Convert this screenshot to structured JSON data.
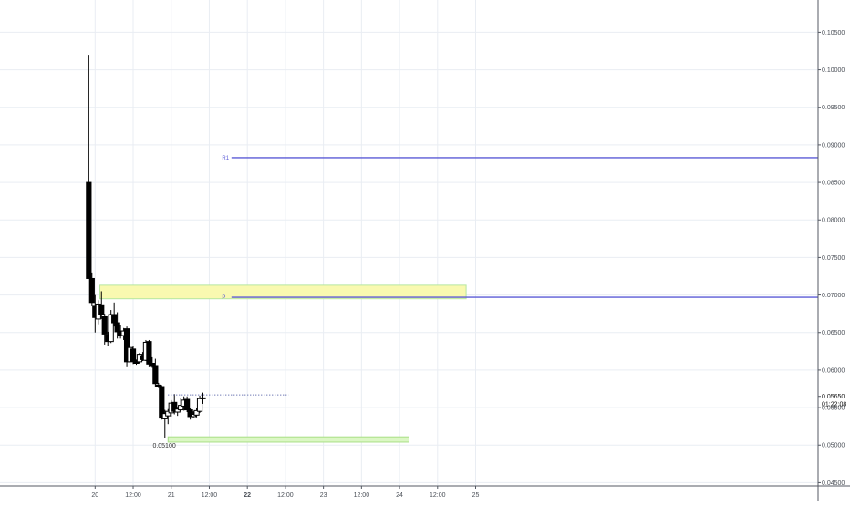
{
  "chart_data": {
    "type": "candlestick",
    "title": "",
    "xlabel": "",
    "ylabel": "",
    "y_axis_position": "right",
    "grid": true,
    "ylim": [
      0.0425,
      0.1093
    ],
    "xlim_hours": [
      -30,
      228
    ],
    "y_ticks": [
      "0.10500",
      "0.10000",
      "0.09500",
      "0.09000",
      "0.08500",
      "0.08000",
      "0.07500",
      "0.07000",
      "0.06500",
      "0.06000",
      "0.05500",
      "0.05000",
      "0.04500"
    ],
    "x_ticks": [
      {
        "label": "20",
        "hour": 0,
        "bold": false
      },
      {
        "label": "12:00",
        "hour": 12,
        "bold": false
      },
      {
        "label": "21",
        "hour": 24,
        "bold": false
      },
      {
        "label": "12:00",
        "hour": 36,
        "bold": false
      },
      {
        "label": "22",
        "hour": 48,
        "bold": true
      },
      {
        "label": "12:00",
        "hour": 60,
        "bold": false
      },
      {
        "label": "23",
        "hour": 72,
        "bold": false
      },
      {
        "label": "12:00",
        "hour": 84,
        "bold": false
      },
      {
        "label": "24",
        "hour": 96,
        "bold": false
      },
      {
        "label": "12:00",
        "hour": 108,
        "bold": false
      },
      {
        "label": "25",
        "hour": 120,
        "bold": false
      }
    ],
    "candles": [
      {
        "t": -2,
        "o": 0.085,
        "h": 0.102,
        "l": 0.0722,
        "c": 0.0722
      },
      {
        "t": -1,
        "o": 0.0722,
        "h": 0.073,
        "l": 0.0685,
        "c": 0.069
      },
      {
        "t": 0,
        "o": 0.0685,
        "h": 0.07,
        "l": 0.065,
        "c": 0.067
      },
      {
        "t": 1,
        "o": 0.0668,
        "h": 0.0693,
        "l": 0.0661,
        "c": 0.0688
      },
      {
        "t": 2,
        "o": 0.0687,
        "h": 0.0705,
        "l": 0.0668,
        "c": 0.0674
      },
      {
        "t": 3,
        "o": 0.0671,
        "h": 0.0675,
        "l": 0.0634,
        "c": 0.0648
      },
      {
        "t": 4,
        "o": 0.0647,
        "h": 0.0651,
        "l": 0.0632,
        "c": 0.0638
      },
      {
        "t": 5,
        "o": 0.0638,
        "h": 0.068,
        "l": 0.0636,
        "c": 0.0674
      },
      {
        "t": 6,
        "o": 0.0674,
        "h": 0.069,
        "l": 0.0658,
        "c": 0.0663
      },
      {
        "t": 7,
        "o": 0.0663,
        "h": 0.0677,
        "l": 0.0642,
        "c": 0.0651
      },
      {
        "t": 8,
        "o": 0.0652,
        "h": 0.066,
        "l": 0.0642,
        "c": 0.0646
      },
      {
        "t": 9,
        "o": 0.0646,
        "h": 0.0656,
        "l": 0.064,
        "c": 0.0652
      },
      {
        "t": 10,
        "o": 0.0655,
        "h": 0.0658,
        "l": 0.0605,
        "c": 0.0611
      },
      {
        "t": 11,
        "o": 0.0611,
        "h": 0.0632,
        "l": 0.0605,
        "c": 0.063
      },
      {
        "t": 12,
        "o": 0.0628,
        "h": 0.0632,
        "l": 0.0608,
        "c": 0.0612
      },
      {
        "t": 13,
        "o": 0.0611,
        "h": 0.0614,
        "l": 0.0607,
        "c": 0.0609
      },
      {
        "t": 14,
        "o": 0.0611,
        "h": 0.0623,
        "l": 0.0609,
        "c": 0.0621
      },
      {
        "t": 15,
        "o": 0.0619,
        "h": 0.0624,
        "l": 0.0612,
        "c": 0.0614
      },
      {
        "t": 16,
        "o": 0.0613,
        "h": 0.064,
        "l": 0.0612,
        "c": 0.0637
      },
      {
        "t": 17,
        "o": 0.0638,
        "h": 0.064,
        "l": 0.0605,
        "c": 0.0608
      },
      {
        "t": 18,
        "o": 0.0609,
        "h": 0.0617,
        "l": 0.0603,
        "c": 0.0606
      },
      {
        "t": 19,
        "o": 0.0606,
        "h": 0.0615,
        "l": 0.0578,
        "c": 0.0582
      },
      {
        "t": 20,
        "o": 0.058,
        "h": 0.0583,
        "l": 0.0576,
        "c": 0.0578
      },
      {
        "t": 21,
        "o": 0.0578,
        "h": 0.058,
        "l": 0.0534,
        "c": 0.0536
      },
      {
        "t": 22,
        "o": 0.0535,
        "h": 0.0547,
        "l": 0.051,
        "c": 0.0542
      },
      {
        "t": 23,
        "o": 0.0539,
        "h": 0.0548,
        "l": 0.0528,
        "c": 0.0545
      },
      {
        "t": 24,
        "o": 0.0543,
        "h": 0.056,
        "l": 0.0538,
        "c": 0.0556
      },
      {
        "t": 25,
        "o": 0.0557,
        "h": 0.0568,
        "l": 0.0541,
        "c": 0.0545
      },
      {
        "t": 26,
        "o": 0.0544,
        "h": 0.0551,
        "l": 0.0539,
        "c": 0.0548
      },
      {
        "t": 27,
        "o": 0.0547,
        "h": 0.0562,
        "l": 0.0545,
        "c": 0.0553
      },
      {
        "t": 28,
        "o": 0.0552,
        "h": 0.0565,
        "l": 0.0546,
        "c": 0.056
      },
      {
        "t": 29,
        "o": 0.0561,
        "h": 0.0565,
        "l": 0.0544,
        "c": 0.0547
      },
      {
        "t": 30,
        "o": 0.0547,
        "h": 0.0549,
        "l": 0.0534,
        "c": 0.0538
      },
      {
        "t": 31,
        "o": 0.0538,
        "h": 0.0545,
        "l": 0.0536,
        "c": 0.0541
      },
      {
        "t": 32,
        "o": 0.054,
        "h": 0.0549,
        "l": 0.0537,
        "c": 0.0546
      },
      {
        "t": 33,
        "o": 0.0545,
        "h": 0.0566,
        "l": 0.0543,
        "c": 0.0562
      },
      {
        "t": 34,
        "o": 0.0562,
        "h": 0.057,
        "l": 0.0555,
        "c": 0.0563
      }
    ],
    "candle_width_hours": 1.5,
    "zones": [
      {
        "name": "supply-zone",
        "t1": 1.5,
        "t2": 117,
        "y1": 0.0695,
        "y2": 0.0713,
        "fill": "#f9f9b0",
        "stroke": "#b6e6a0"
      },
      {
        "name": "demand-zone",
        "t1": 23,
        "t2": 99,
        "y1": 0.0504,
        "y2": 0.0511,
        "fill": "#dbf7c4",
        "stroke": "#a8df86"
      }
    ],
    "levels": [
      {
        "name": "r1-level",
        "label": "R1",
        "value": 0.0883,
        "t_start": 43,
        "label_hour": 40,
        "color": "#5b5bd6"
      },
      {
        "name": "p-level",
        "label": "P",
        "value": 0.0697,
        "t_start": 43,
        "label_hour": 40,
        "color": "#5b5bd6"
      }
    ],
    "price_line": {
      "value": 0.0567,
      "t_start": 23,
      "t_end": 61,
      "color": "#3d4a9a"
    },
    "low_label": {
      "text": "0.05100",
      "value": 0.051,
      "t": 21.8
    },
    "current_price": {
      "label": "0.05650",
      "value": 0.0565
    },
    "countdown": {
      "label": "01:22:08",
      "value": 0.0555
    },
    "colors": {
      "up_body": "#ffffff",
      "down_body": "#000000",
      "wick": "#000000",
      "grid": "#e9edf3",
      "axis_text": "#4a4f57",
      "axis_line": "#545963"
    }
  }
}
